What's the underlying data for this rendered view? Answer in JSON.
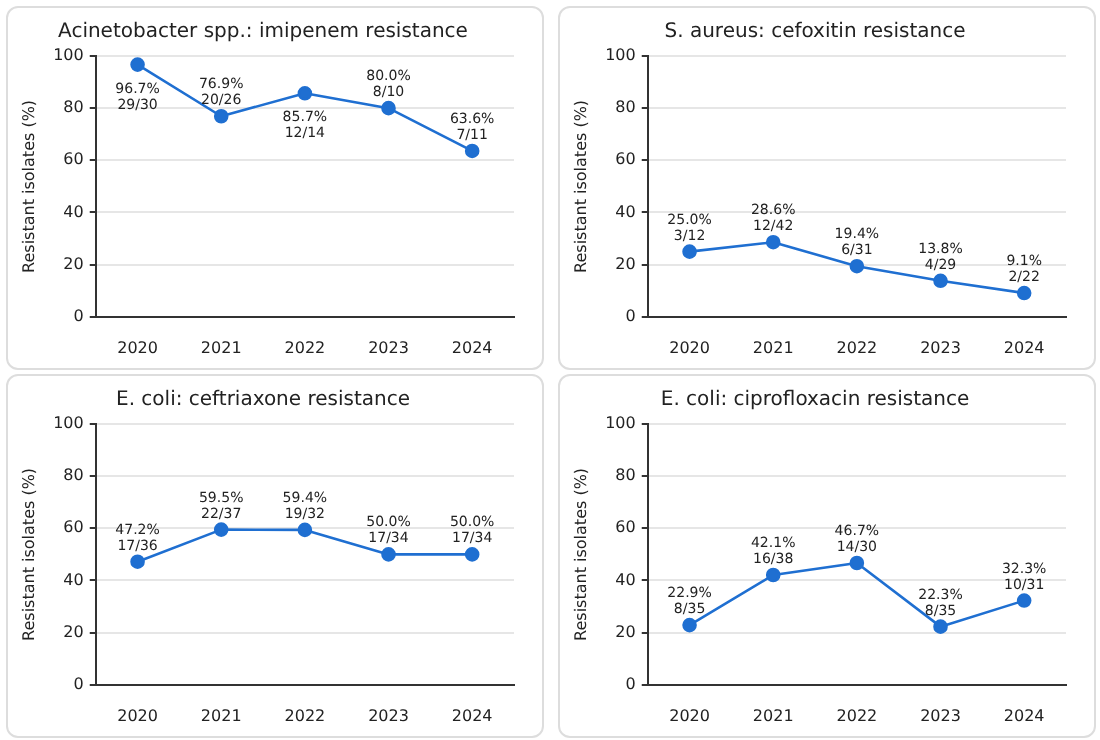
{
  "chart_data": [
    {
      "type": "line",
      "title": "Acinetobacter spp.: imipenem resistance",
      "ylabel": "Resistant isolates (%)",
      "categories": [
        "2020",
        "2021",
        "2022",
        "2023",
        "2024"
      ],
      "ylim": [
        0,
        100
      ],
      "yticks": [
        0,
        20,
        40,
        60,
        80,
        100
      ],
      "grid": "y",
      "marker": "circle",
      "legend": false,
      "series": [
        {
          "color": "#1f6fd1",
          "values": [
            96.7,
            76.9,
            85.7,
            80.0,
            63.6
          ],
          "value_labels": [
            "96.7%\n29/30",
            "76.9%\n20/26",
            "85.7%\n12/14",
            "80.0%\n8/10",
            "63.6%\n7/11"
          ]
        }
      ]
    },
    {
      "type": "line",
      "title": "S. aureus: cefoxitin resistance",
      "ylabel": "Resistant isolates (%)",
      "categories": [
        "2020",
        "2021",
        "2022",
        "2023",
        "2024"
      ],
      "ylim": [
        0,
        100
      ],
      "yticks": [
        0,
        20,
        40,
        60,
        80,
        100
      ],
      "grid": "y",
      "marker": "circle",
      "legend": false,
      "series": [
        {
          "color": "#1f6fd1",
          "values": [
            25.0,
            28.6,
            19.4,
            13.8,
            9.1
          ],
          "value_labels": [
            "25.0%\n3/12",
            "28.6%\n12/42",
            "19.4%\n6/31",
            "13.8%\n4/29",
            "9.1%\n2/22"
          ]
        }
      ]
    },
    {
      "type": "line",
      "title": "E. coli: ceftriaxone resistance",
      "ylabel": "Resistant isolates (%)",
      "categories": [
        "2020",
        "2021",
        "2022",
        "2023",
        "2024"
      ],
      "ylim": [
        0,
        100
      ],
      "yticks": [
        0,
        20,
        40,
        60,
        80,
        100
      ],
      "grid": "y",
      "marker": "circle",
      "legend": false,
      "series": [
        {
          "color": "#1f6fd1",
          "values": [
            47.2,
            59.5,
            59.4,
            50.0,
            50.0
          ],
          "value_labels": [
            "47.2%\n17/36",
            "59.5%\n22/37",
            "59.4%\n19/32",
            "50.0%\n17/34",
            "50.0%\n17/34"
          ]
        }
      ]
    },
    {
      "type": "line",
      "title": "E. coli: ciprofloxacin resistance",
      "ylabel": "Resistant isolates (%)",
      "categories": [
        "2020",
        "2021",
        "2022",
        "2023",
        "2024"
      ],
      "ylim": [
        0,
        100
      ],
      "yticks": [
        0,
        20,
        40,
        60,
        80,
        100
      ],
      "grid": "y",
      "marker": "circle",
      "legend": false,
      "series": [
        {
          "color": "#1f6fd1",
          "values": [
            22.9,
            42.1,
            46.7,
            22.3,
            32.3
          ],
          "value_labels": [
            "22.9%\n8/35",
            "42.1%\n16/38",
            "46.7%\n14/30",
            "22.3%\n8/35",
            "32.3%\n10/31"
          ]
        }
      ]
    }
  ]
}
